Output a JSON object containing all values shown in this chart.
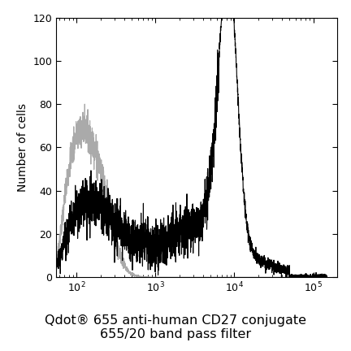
{
  "title_line1": "Qdot® 655 anti-human CD27 conjugate",
  "title_line2": "655/20 band pass filter",
  "ylabel": "Number of cells",
  "xlabel": "",
  "xlim": [
    55,
    200000
  ],
  "ylim": [
    0,
    120
  ],
  "yticks": [
    0,
    20,
    40,
    60,
    80,
    100,
    120
  ],
  "black_color": "#000000",
  "gray_color": "#aaaaaa",
  "bg_color": "#ffffff",
  "title_fontsize": 11.5,
  "ylabel_fontsize": 10,
  "tick_labelsize": 9
}
